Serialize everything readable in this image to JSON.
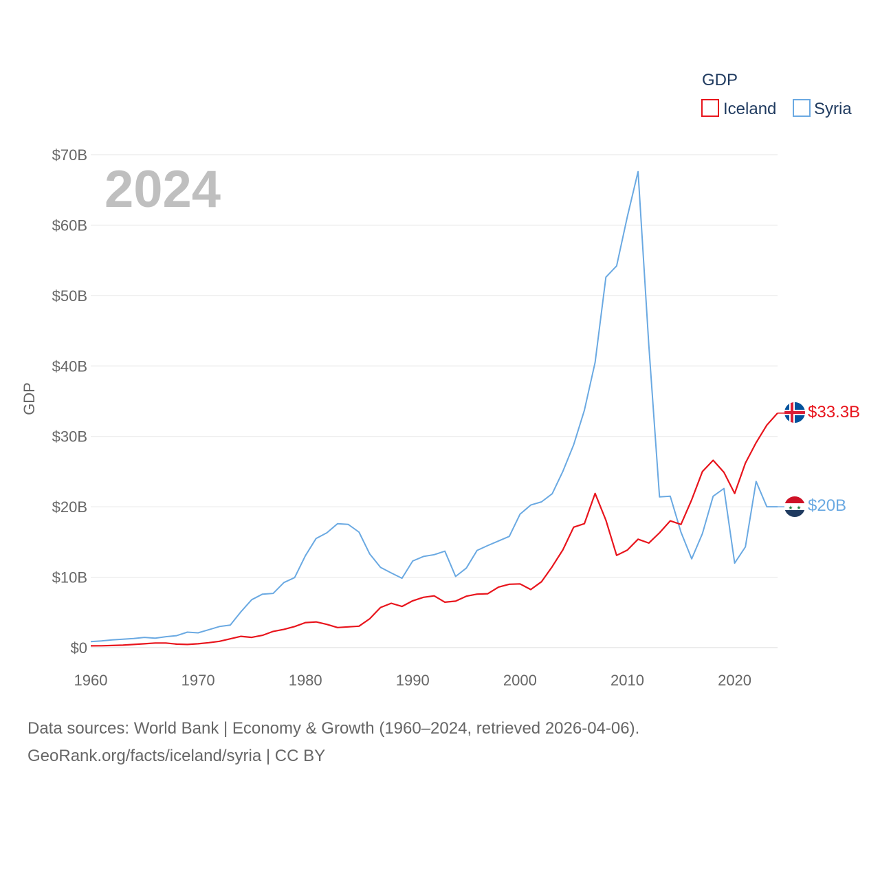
{
  "chart_data": {
    "type": "line",
    "ylabel": "GDP",
    "year_label": "2024",
    "ylim": [
      0,
      70
    ],
    "xlim": [
      1960,
      2024
    ],
    "y_ticks": [
      {
        "value": 0,
        "label": "$0"
      },
      {
        "value": 10,
        "label": "$10B"
      },
      {
        "value": 20,
        "label": "$20B"
      },
      {
        "value": 30,
        "label": "$30B"
      },
      {
        "value": 40,
        "label": "$40B"
      },
      {
        "value": 50,
        "label": "$50B"
      },
      {
        "value": 60,
        "label": "$60B"
      },
      {
        "value": 70,
        "label": "$70B"
      }
    ],
    "x_ticks": [
      {
        "value": 1960,
        "label": "1960"
      },
      {
        "value": 1970,
        "label": "1970"
      },
      {
        "value": 1980,
        "label": "1980"
      },
      {
        "value": 1990,
        "label": "1990"
      },
      {
        "value": 2000,
        "label": "2000"
      },
      {
        "value": 2010,
        "label": "2010"
      },
      {
        "value": 2020,
        "label": "2020"
      }
    ],
    "legend": {
      "title": "GDP",
      "position": "top-right"
    },
    "series": [
      {
        "name": "Iceland",
        "color": "#e8141c",
        "end_label": "$33.3B",
        "flag": "iceland-flag",
        "points": [
          [
            1960,
            0.25
          ],
          [
            1961,
            0.26
          ],
          [
            1962,
            0.3
          ],
          [
            1963,
            0.35
          ],
          [
            1964,
            0.45
          ],
          [
            1965,
            0.55
          ],
          [
            1966,
            0.65
          ],
          [
            1967,
            0.65
          ],
          [
            1968,
            0.5
          ],
          [
            1969,
            0.45
          ],
          [
            1970,
            0.55
          ],
          [
            1971,
            0.7
          ],
          [
            1972,
            0.9
          ],
          [
            1973,
            1.25
          ],
          [
            1974,
            1.6
          ],
          [
            1975,
            1.45
          ],
          [
            1976,
            1.75
          ],
          [
            1977,
            2.3
          ],
          [
            1978,
            2.6
          ],
          [
            1979,
            3.0
          ],
          [
            1980,
            3.55
          ],
          [
            1981,
            3.65
          ],
          [
            1982,
            3.3
          ],
          [
            1983,
            2.85
          ],
          [
            1984,
            2.95
          ],
          [
            1985,
            3.05
          ],
          [
            1986,
            4.1
          ],
          [
            1987,
            5.7
          ],
          [
            1988,
            6.3
          ],
          [
            1989,
            5.85
          ],
          [
            1990,
            6.65
          ],
          [
            1991,
            7.15
          ],
          [
            1992,
            7.35
          ],
          [
            1993,
            6.45
          ],
          [
            1994,
            6.6
          ],
          [
            1995,
            7.3
          ],
          [
            1996,
            7.6
          ],
          [
            1997,
            7.65
          ],
          [
            1998,
            8.6
          ],
          [
            1999,
            9.0
          ],
          [
            2000,
            9.05
          ],
          [
            2001,
            8.25
          ],
          [
            2002,
            9.35
          ],
          [
            2003,
            11.5
          ],
          [
            2004,
            13.9
          ],
          [
            2005,
            17.1
          ],
          [
            2006,
            17.6
          ],
          [
            2007,
            21.9
          ],
          [
            2008,
            18.1
          ],
          [
            2009,
            13.1
          ],
          [
            2010,
            13.85
          ],
          [
            2011,
            15.4
          ],
          [
            2012,
            14.85
          ],
          [
            2013,
            16.3
          ],
          [
            2014,
            18.0
          ],
          [
            2015,
            17.5
          ],
          [
            2016,
            21.0
          ],
          [
            2017,
            25.0
          ],
          [
            2018,
            26.6
          ],
          [
            2019,
            24.9
          ],
          [
            2020,
            21.9
          ],
          [
            2021,
            26.2
          ],
          [
            2022,
            29.1
          ],
          [
            2023,
            31.6
          ],
          [
            2024,
            33.3
          ]
        ]
      },
      {
        "name": "Syria",
        "color": "#6aa9e2",
        "end_label": "$20B",
        "flag": "syria-flag",
        "points": [
          [
            1960,
            0.85
          ],
          [
            1961,
            0.95
          ],
          [
            1962,
            1.1
          ],
          [
            1963,
            1.2
          ],
          [
            1964,
            1.3
          ],
          [
            1965,
            1.45
          ],
          [
            1966,
            1.35
          ],
          [
            1967,
            1.55
          ],
          [
            1968,
            1.7
          ],
          [
            1969,
            2.2
          ],
          [
            1970,
            2.1
          ],
          [
            1971,
            2.55
          ],
          [
            1972,
            3.0
          ],
          [
            1973,
            3.2
          ],
          [
            1974,
            5.1
          ],
          [
            1975,
            6.8
          ],
          [
            1976,
            7.6
          ],
          [
            1977,
            7.7
          ],
          [
            1978,
            9.25
          ],
          [
            1979,
            9.95
          ],
          [
            1980,
            13.05
          ],
          [
            1981,
            15.5
          ],
          [
            1982,
            16.3
          ],
          [
            1983,
            17.6
          ],
          [
            1984,
            17.5
          ],
          [
            1985,
            16.4
          ],
          [
            1986,
            13.3
          ],
          [
            1987,
            11.4
          ],
          [
            1988,
            10.6
          ],
          [
            1989,
            9.85
          ],
          [
            1990,
            12.3
          ],
          [
            1991,
            12.95
          ],
          [
            1992,
            13.2
          ],
          [
            1993,
            13.7
          ],
          [
            1994,
            10.1
          ],
          [
            1995,
            11.3
          ],
          [
            1996,
            13.8
          ],
          [
            1997,
            14.5
          ],
          [
            1998,
            15.15
          ],
          [
            1999,
            15.8
          ],
          [
            2000,
            18.95
          ],
          [
            2001,
            20.25
          ],
          [
            2002,
            20.7
          ],
          [
            2003,
            21.85
          ],
          [
            2004,
            25.05
          ],
          [
            2005,
            28.8
          ],
          [
            2006,
            33.7
          ],
          [
            2007,
            40.5
          ],
          [
            2008,
            52.6
          ],
          [
            2009,
            54.2
          ],
          [
            2010,
            61.2
          ],
          [
            2011,
            67.6
          ],
          [
            2012,
            43.0
          ],
          [
            2013,
            21.4
          ],
          [
            2014,
            21.5
          ],
          [
            2015,
            16.4
          ],
          [
            2016,
            12.6
          ],
          [
            2017,
            16.2
          ],
          [
            2018,
            21.5
          ],
          [
            2019,
            22.6
          ],
          [
            2020,
            12.0
          ],
          [
            2021,
            14.3
          ],
          [
            2022,
            23.6
          ],
          [
            2023,
            20.0
          ],
          [
            2024,
            20.0
          ]
        ]
      }
    ]
  },
  "sources": {
    "line1": "Data sources: World Bank | Economy & Growth (1960–2024, retrieved 2026-04-06).",
    "line2": "GeoRank.org/facts/iceland/syria | CC BY"
  }
}
